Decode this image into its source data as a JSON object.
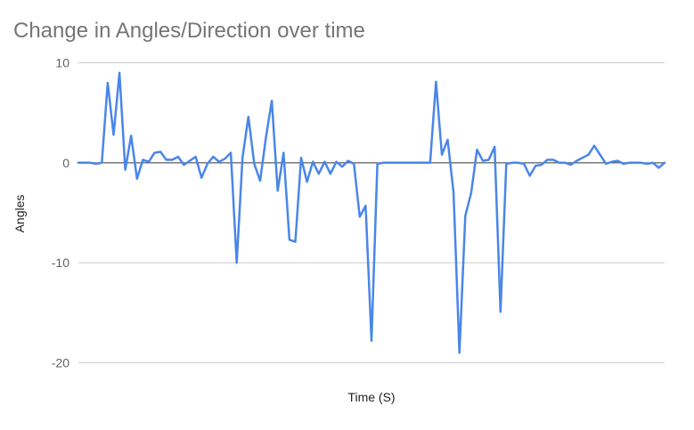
{
  "chart_data": {
    "type": "line",
    "title": "Change in Angles/Direction over time",
    "xlabel": "Time (S)",
    "ylabel": "Angles",
    "ylim": [
      -20,
      10
    ],
    "yticks": [
      10,
      0,
      -10,
      -20
    ],
    "xticks_shown": false,
    "grid": true,
    "legend": "none",
    "x": [
      0,
      1,
      2,
      3,
      4,
      5,
      6,
      7,
      8,
      9,
      10,
      11,
      12,
      13,
      14,
      15,
      16,
      17,
      18,
      19,
      20,
      21,
      22,
      23,
      24,
      25,
      26,
      27,
      28,
      29,
      30,
      31,
      32,
      33,
      34,
      35,
      36,
      37,
      38,
      39,
      40,
      41,
      42,
      43,
      44,
      45,
      46,
      47,
      48,
      49,
      50,
      51,
      52,
      53,
      54,
      55,
      56,
      57,
      58,
      59,
      60,
      61,
      62,
      63,
      64,
      65,
      66,
      67,
      68,
      69,
      70,
      71,
      72,
      73,
      74,
      75,
      76,
      77,
      78,
      79,
      80,
      81,
      82,
      83,
      84,
      85,
      86,
      87,
      88,
      89,
      90,
      91,
      92,
      93,
      94,
      95,
      96,
      97,
      98,
      99,
      100
    ],
    "series": [
      {
        "color": "#4a86e8",
        "values": [
          0,
          0,
          0,
          -0.1,
          0,
          8,
          2.8,
          9,
          -0.7,
          2.7,
          -1.6,
          0.3,
          0.1,
          1,
          1.1,
          0.3,
          0.3,
          0.6,
          -0.2,
          0.2,
          0.6,
          -1.5,
          -0.1,
          0.6,
          0.1,
          0.4,
          1,
          -10,
          0.5,
          4.6,
          -0.1,
          -1.8,
          2.6,
          6.2,
          -2.8,
          1,
          -7.7,
          -7.9,
          0.5,
          -1.9,
          0.1,
          -1.1,
          0.1,
          -1.1,
          0.1,
          -0.4,
          0.2,
          -0.1,
          -5.4,
          -4.3,
          -17.8,
          -0.1,
          0,
          0,
          0,
          0,
          0,
          0,
          0,
          0,
          0,
          8.1,
          0.8,
          2.3,
          -3,
          -19,
          -5.3,
          -3,
          1.3,
          0.2,
          0.3,
          1.6,
          -14.9,
          -0.1,
          0,
          0,
          -0.1,
          -1.3,
          -0.3,
          -0.2,
          0.3,
          0.3,
          0,
          0,
          -0.2,
          0.2,
          0.5,
          0.8,
          1.7,
          0.8,
          -0.1,
          0.1,
          0.2,
          -0.1,
          0,
          0,
          0,
          -0.1,
          0,
          -0.5,
          0
        ]
      }
    ]
  }
}
